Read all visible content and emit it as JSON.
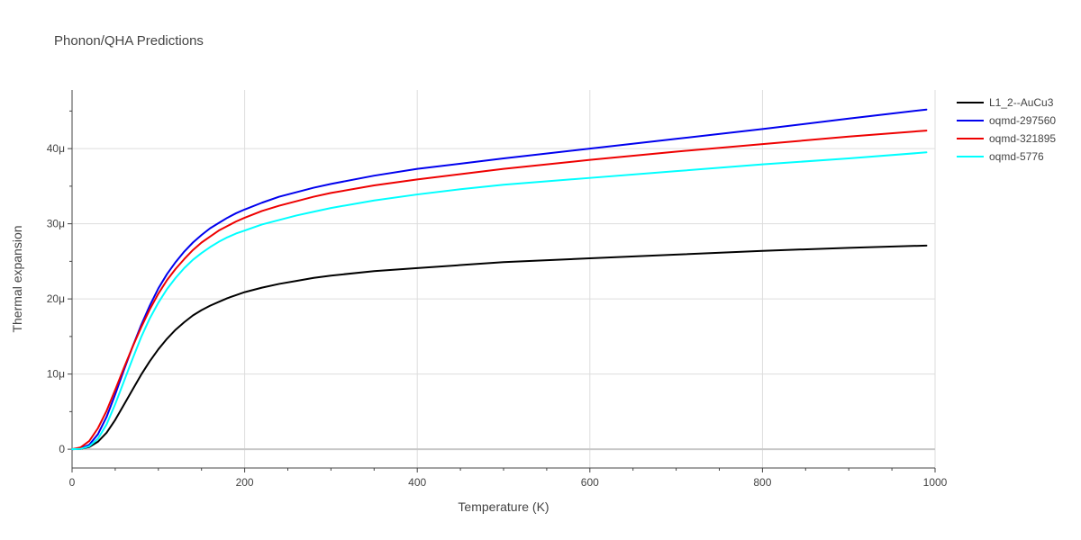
{
  "chart_data": {
    "type": "line",
    "title": "Phonon/QHA Predictions",
    "xlabel": "Temperature (K)",
    "ylabel": "Thermal expansion",
    "xlim": [
      0,
      1000
    ],
    "ylim": [
      -2.5e-06,
      4.78e-05
    ],
    "x_ticks": [
      0,
      200,
      400,
      600,
      800,
      1000
    ],
    "x_tick_labels": [
      "0",
      "200",
      "400",
      "600",
      "800",
      "1000"
    ],
    "y_ticks": [
      0,
      1e-05,
      2e-05,
      3e-05,
      4e-05
    ],
    "y_tick_labels": [
      "0",
      "10μ",
      "20μ",
      "30μ",
      "40μ"
    ],
    "grid": true,
    "legend_position": "top-right",
    "series": [
      {
        "name": "L1_2--AuCu3",
        "color": "#000000",
        "x": [
          0,
          10,
          20,
          30,
          40,
          50,
          60,
          70,
          80,
          90,
          100,
          110,
          120,
          130,
          140,
          150,
          160,
          170,
          180,
          190,
          200,
          220,
          240,
          260,
          280,
          300,
          350,
          400,
          450,
          500,
          600,
          700,
          800,
          900,
          990
        ],
        "y": [
          0,
          5e-08,
          3e-07,
          1e-06,
          2.2e-06,
          3.9e-06,
          5.9e-06,
          7.9e-06,
          9.9e-06,
          1.17e-05,
          1.33e-05,
          1.47e-05,
          1.59e-05,
          1.69e-05,
          1.78e-05,
          1.85e-05,
          1.91e-05,
          1.96e-05,
          2.01e-05,
          2.05e-05,
          2.09e-05,
          2.15e-05,
          2.2e-05,
          2.24e-05,
          2.28e-05,
          2.31e-05,
          2.37e-05,
          2.41e-05,
          2.45e-05,
          2.49e-05,
          2.54e-05,
          2.59e-05,
          2.64e-05,
          2.68e-05,
          2.71e-05
        ]
      },
      {
        "name": "oqmd-297560",
        "color": "#0000ee",
        "x": [
          0,
          10,
          20,
          30,
          40,
          50,
          60,
          70,
          80,
          90,
          100,
          110,
          120,
          130,
          140,
          150,
          160,
          170,
          180,
          190,
          200,
          220,
          240,
          260,
          280,
          300,
          350,
          400,
          450,
          500,
          600,
          700,
          800,
          900,
          990
        ],
        "y": [
          0,
          1e-07,
          6e-07,
          2e-06,
          4.3e-06,
          7.3e-06,
          1.05e-05,
          1.36e-05,
          1.65e-05,
          1.91e-05,
          2.14e-05,
          2.33e-05,
          2.49e-05,
          2.63e-05,
          2.75e-05,
          2.85e-05,
          2.94e-05,
          3.01e-05,
          3.08e-05,
          3.14e-05,
          3.19e-05,
          3.28e-05,
          3.36e-05,
          3.42e-05,
          3.48e-05,
          3.53e-05,
          3.64e-05,
          3.73e-05,
          3.8e-05,
          3.87e-05,
          4e-05,
          4.13e-05,
          4.26e-05,
          4.4e-05,
          4.52e-05
        ]
      },
      {
        "name": "oqmd-321895",
        "color": "#ee0000",
        "x": [
          0,
          10,
          20,
          30,
          40,
          50,
          60,
          70,
          80,
          90,
          100,
          110,
          120,
          130,
          140,
          150,
          160,
          170,
          180,
          190,
          200,
          220,
          240,
          260,
          280,
          300,
          350,
          400,
          450,
          500,
          600,
          700,
          800,
          900,
          990
        ],
        "y": [
          0,
          2.5e-07,
          1.1e-06,
          2.8e-06,
          5.1e-06,
          7.9e-06,
          1.08e-05,
          1.36e-05,
          1.62e-05,
          1.86e-05,
          2.07e-05,
          2.25e-05,
          2.4e-05,
          2.53e-05,
          2.65e-05,
          2.75e-05,
          2.83e-05,
          2.91e-05,
          2.97e-05,
          3.03e-05,
          3.08e-05,
          3.17e-05,
          3.24e-05,
          3.3e-05,
          3.36e-05,
          3.41e-05,
          3.51e-05,
          3.59e-05,
          3.66e-05,
          3.73e-05,
          3.85e-05,
          3.96e-05,
          4.06e-05,
          4.16e-05,
          4.24e-05
        ]
      },
      {
        "name": "oqmd-5776",
        "color": "#00ffff",
        "x": [
          0,
          10,
          20,
          30,
          40,
          50,
          60,
          70,
          80,
          90,
          100,
          110,
          120,
          130,
          140,
          150,
          160,
          170,
          180,
          190,
          200,
          220,
          240,
          260,
          280,
          300,
          350,
          400,
          450,
          500,
          600,
          700,
          800,
          900,
          990
        ],
        "y": [
          0,
          5e-08,
          4e-07,
          1.4e-06,
          3.3e-06,
          6e-06,
          9e-06,
          1.2e-05,
          1.49e-05,
          1.74e-05,
          1.95e-05,
          2.13e-05,
          2.28e-05,
          2.41e-05,
          2.52e-05,
          2.61e-05,
          2.69e-05,
          2.76e-05,
          2.82e-05,
          2.87e-05,
          2.91e-05,
          2.99e-05,
          3.05e-05,
          3.11e-05,
          3.16e-05,
          3.21e-05,
          3.31e-05,
          3.39e-05,
          3.46e-05,
          3.52e-05,
          3.61e-05,
          3.7e-05,
          3.79e-05,
          3.87e-05,
          3.95e-05
        ]
      }
    ]
  }
}
